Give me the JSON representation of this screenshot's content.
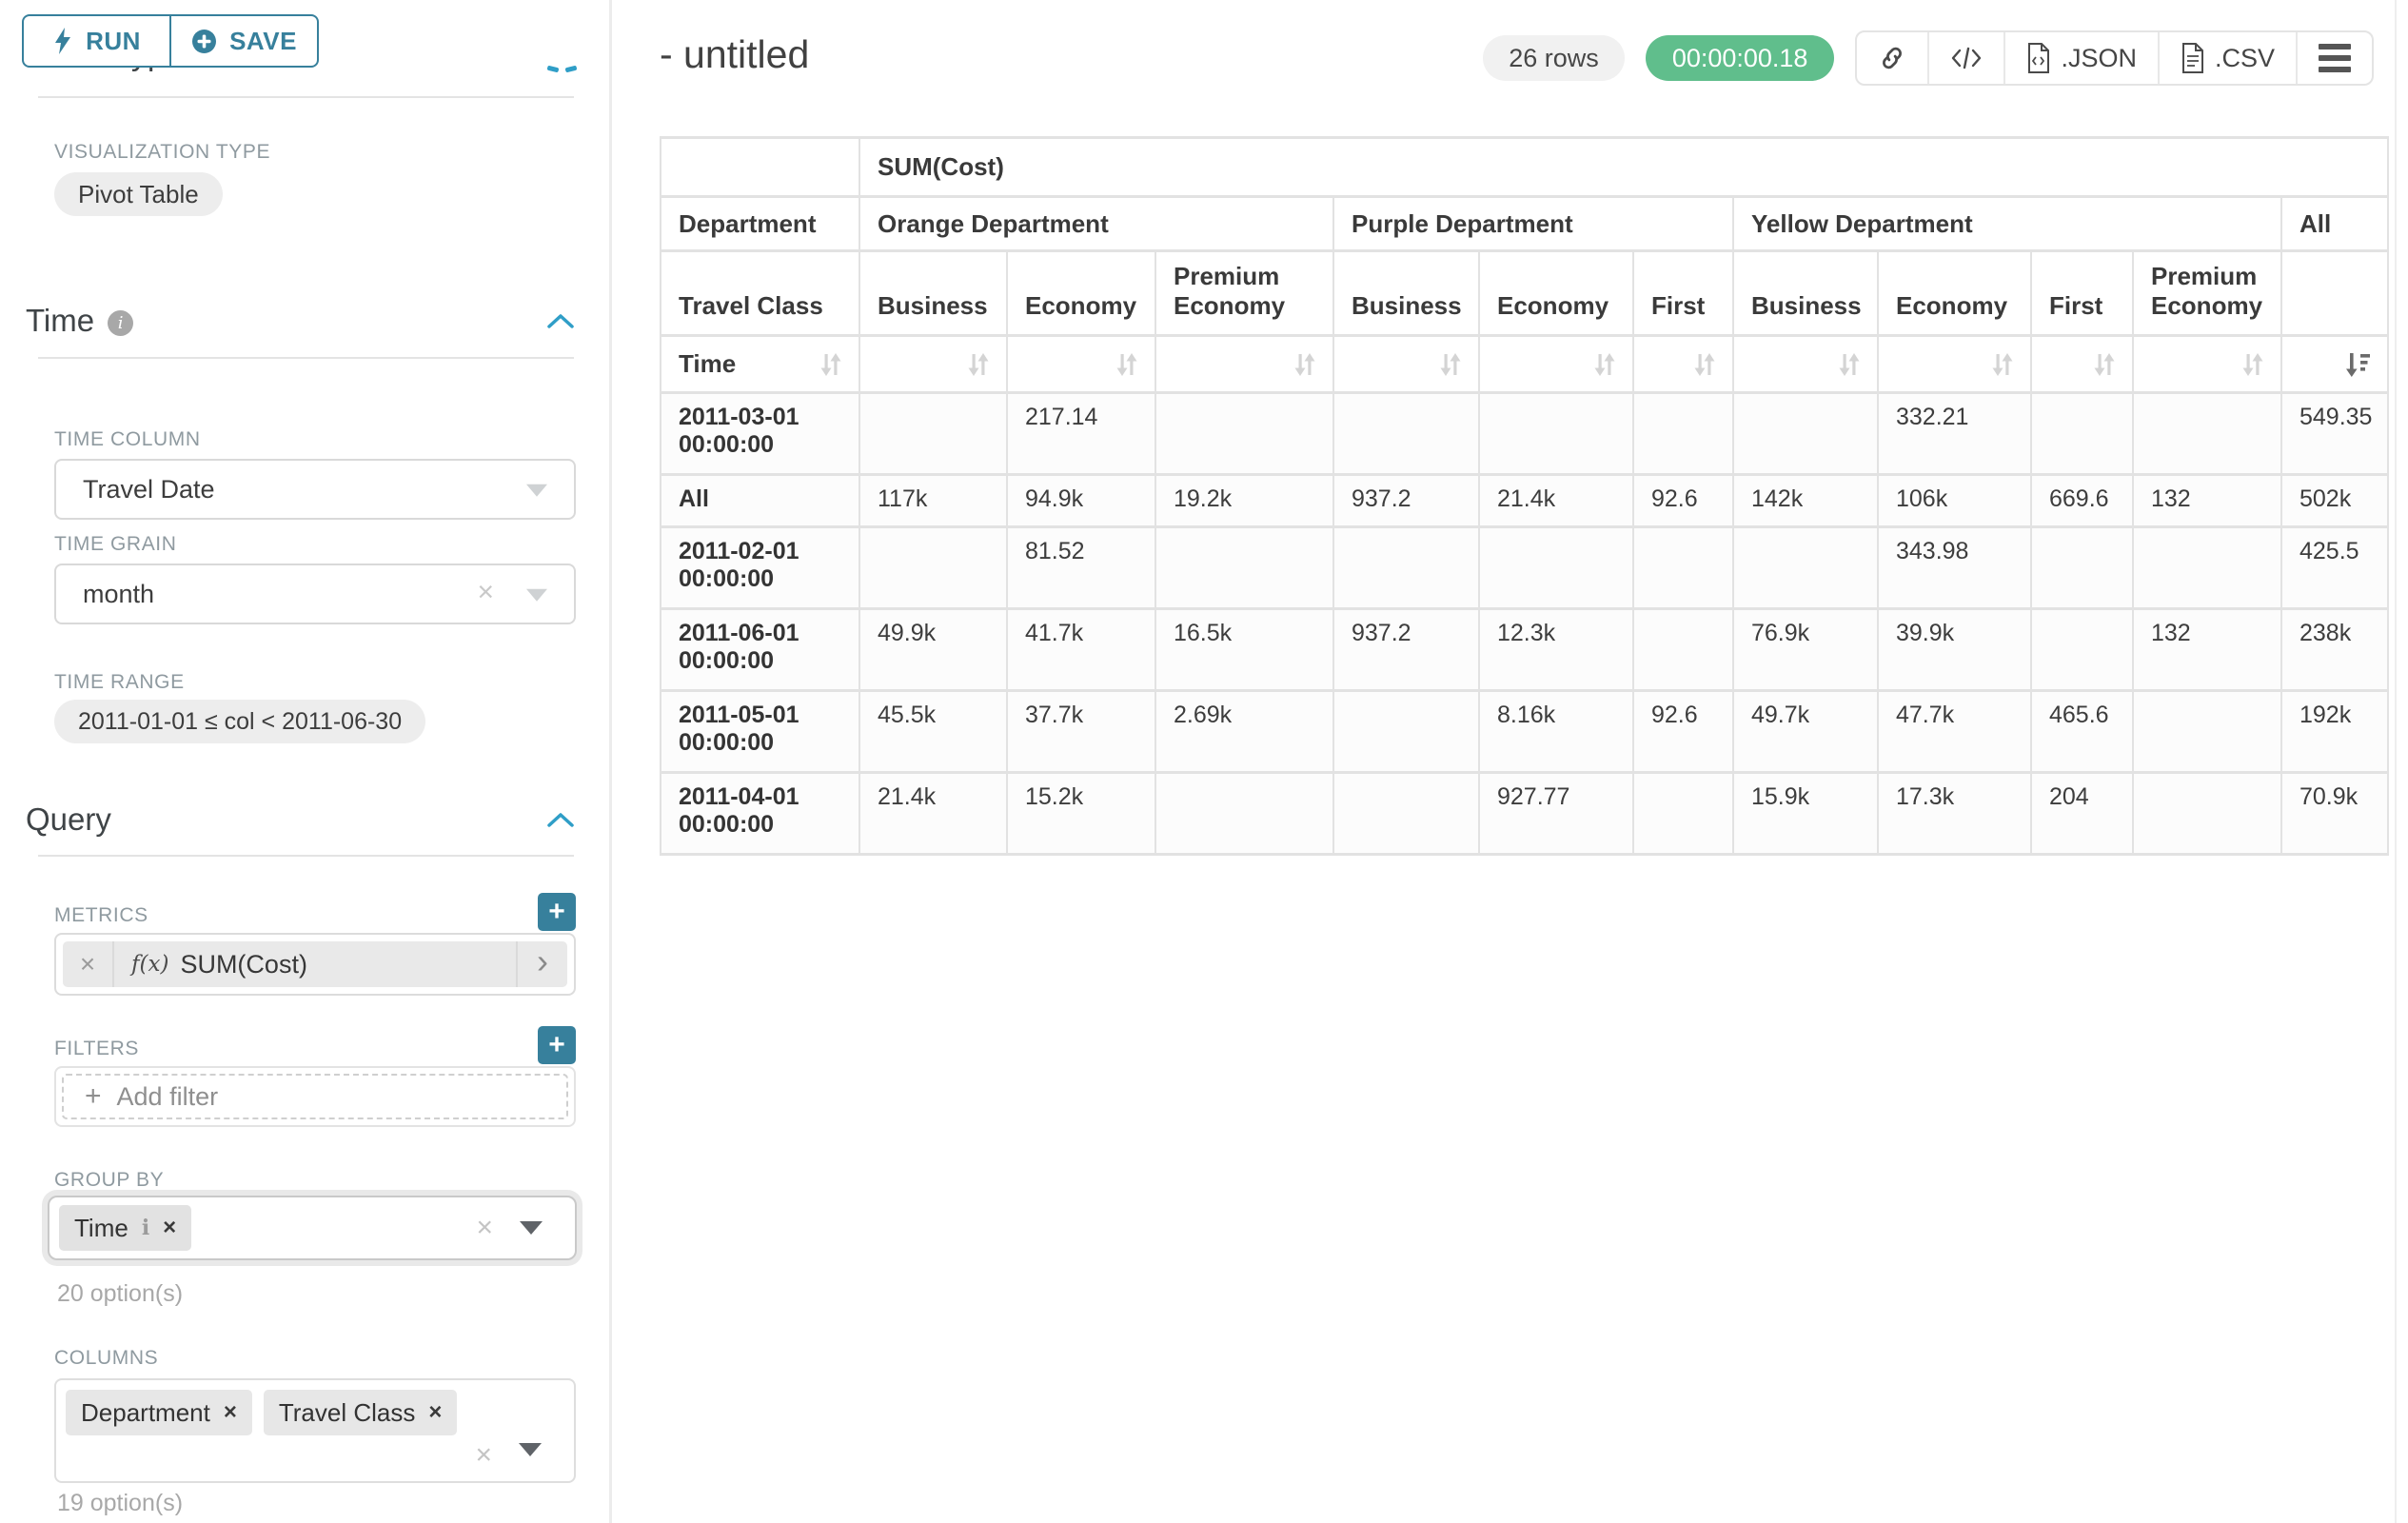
{
  "colors": {
    "accent_teal": "#37809c",
    "chevron_blue": "#2f9ec7",
    "success_green": "#60be8c",
    "pill_gray": "#ededed",
    "table_border": "#e2e2e2"
  },
  "toolbar": {
    "run_label": "RUN",
    "save_label": "SAVE"
  },
  "sidebar": {
    "cut_heading": "Chart Type",
    "viz_type_label": "VISUALIZATION TYPE",
    "viz_type_value": "Pivot Table",
    "time_section": {
      "heading": "Time",
      "time_column_label": "TIME COLUMN",
      "time_column_value": "Travel Date",
      "time_grain_label": "TIME GRAIN",
      "time_grain_value": "month",
      "time_range_label": "TIME RANGE",
      "time_range_value": "2011-01-01 ≤ col < 2011-06-30"
    },
    "query_section": {
      "heading": "Query",
      "metrics_label": "METRICS",
      "metric_fn": "f(x)",
      "metric_value": "SUM(Cost)",
      "filters_label": "FILTERS",
      "add_filter_label": "Add filter",
      "group_by_label": "GROUP BY",
      "group_by_values": [
        "Time"
      ],
      "group_by_options_note": "20 option(s)",
      "columns_label": "COLUMNS",
      "columns_values": [
        "Department",
        "Travel Class"
      ],
      "columns_options_note": "19 option(s)"
    }
  },
  "header": {
    "title": "- untitled",
    "rows_badge": "26 rows",
    "timer_badge": "00:00:00.18",
    "json_label": ".JSON",
    "csv_label": ".CSV"
  },
  "chart_data": {
    "type": "table",
    "subtype": "pivot-table",
    "metric": "SUM(Cost)",
    "corner_row_label": "Department",
    "corner_class_label": "Travel Class",
    "corner_time_label": "Time",
    "sorted_column": "All",
    "sort_direction": "desc",
    "groups": [
      {
        "label": "Orange Department",
        "cols": [
          "Business",
          "Economy",
          "Premium Economy"
        ]
      },
      {
        "label": "Purple Department",
        "cols": [
          "Business",
          "Economy",
          "First"
        ]
      },
      {
        "label": "Yellow Department",
        "cols": [
          "Business",
          "Economy",
          "First",
          "Premium Economy"
        ]
      },
      {
        "label": "All",
        "cols": [
          ""
        ]
      }
    ],
    "rows": [
      {
        "label": "2011-03-01 00:00:00",
        "values": [
          "",
          "217.14",
          "",
          "",
          "",
          "",
          "",
          "332.21",
          "",
          "",
          "549.35"
        ]
      },
      {
        "label": "All",
        "values": [
          "117k",
          "94.9k",
          "19.2k",
          "937.2",
          "21.4k",
          "92.6",
          "142k",
          "106k",
          "669.6",
          "132",
          "502k"
        ]
      },
      {
        "label": "2011-02-01 00:00:00",
        "values": [
          "",
          "81.52",
          "",
          "",
          "",
          "",
          "",
          "343.98",
          "",
          "",
          "425.5"
        ]
      },
      {
        "label": "2011-06-01 00:00:00",
        "values": [
          "49.9k",
          "41.7k",
          "16.5k",
          "937.2",
          "12.3k",
          "",
          "76.9k",
          "39.9k",
          "",
          "132",
          "238k"
        ]
      },
      {
        "label": "2011-05-01 00:00:00",
        "values": [
          "45.5k",
          "37.7k",
          "2.69k",
          "",
          "8.16k",
          "92.6",
          "49.7k",
          "47.7k",
          "465.6",
          "",
          "192k"
        ]
      },
      {
        "label": "2011-04-01 00:00:00",
        "values": [
          "21.4k",
          "15.2k",
          "",
          "",
          "927.77",
          "",
          "15.9k",
          "17.3k",
          "204",
          "",
          "70.9k"
        ]
      }
    ]
  }
}
